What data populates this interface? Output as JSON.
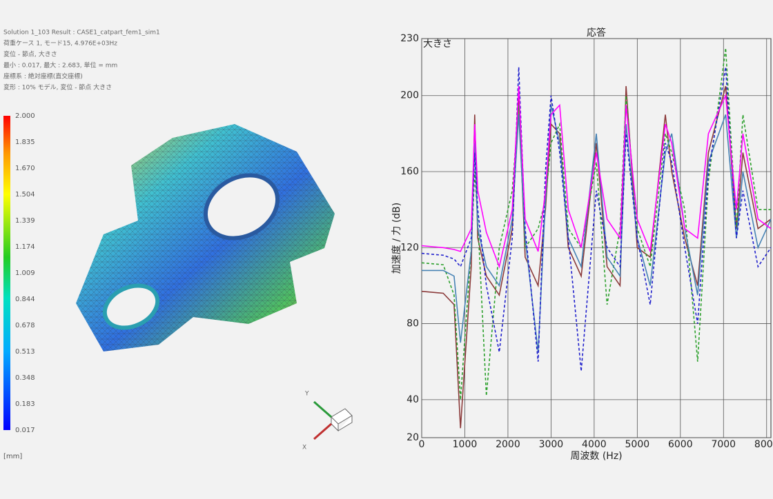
{
  "result_header": {
    "lines": [
      "Solution 1_103 Result : CASE1_catpart_fem1_sim1",
      "荷重ケース 1, モード15, 4.976E+03Hz",
      "変位 - 節点, 大きさ",
      "最小 : 0.017, 最大 : 2.683, 単位 = mm",
      "座標系 : 絶対座標(直交座標)",
      "変形 : 10% モデル, 変位 - 節点 大きさ"
    ]
  },
  "legend": {
    "ticks": [
      "2.000",
      "1.835",
      "1.670",
      "1.504",
      "1.339",
      "1.174",
      "1.009",
      "0.844",
      "0.678",
      "0.513",
      "0.348",
      "0.183",
      "0.017"
    ],
    "unit": "[mm]"
  },
  "triad": {
    "y": "Y",
    "x": "X"
  },
  "chart_data": {
    "type": "line",
    "title": "応答",
    "corner_label": "大きさ",
    "x_label": "周波数 (Hz)",
    "y_label": "加速度 / 力 (dB)",
    "xlim": [
      0,
      8100
    ],
    "ylim": [
      20,
      230
    ],
    "xticks": [
      0,
      1000,
      2000,
      3000,
      4000,
      5000,
      6000,
      7000,
      8000
    ],
    "yticks": [
      20,
      40,
      80,
      120,
      160,
      200,
      230
    ],
    "grid": true,
    "x": [
      0,
      500,
      750,
      900,
      1150,
      1230,
      1300,
      1500,
      1800,
      2100,
      2250,
      2400,
      2700,
      2870,
      3000,
      3200,
      3400,
      3700,
      4050,
      4300,
      4600,
      4740,
      5000,
      5300,
      5650,
      5800,
      6100,
      6400,
      6650,
      7050,
      7300,
      7450,
      7800,
      8100
    ],
    "series": [
      {
        "color": "#8b3a3a",
        "dashed": false,
        "values": [
          97,
          96,
          90,
          25,
          110,
          190,
          125,
          105,
          95,
          130,
          200,
          115,
          100,
          140,
          185,
          180,
          120,
          105,
          175,
          110,
          100,
          205,
          120,
          115,
          190,
          160,
          125,
          100,
          170,
          205,
          130,
          170,
          130,
          135
        ]
      },
      {
        "color": "#2ca02c",
        "dashed": true,
        "values": [
          112,
          111,
          95,
          40,
          120,
          160,
          135,
          42,
          120,
          150,
          195,
          120,
          130,
          145,
          175,
          185,
          130,
          120,
          165,
          90,
          130,
          200,
          130,
          110,
          180,
          170,
          140,
          60,
          155,
          225,
          130,
          190,
          140,
          140
        ]
      },
      {
        "color": "#4682b4",
        "dashed": false,
        "values": [
          108,
          108,
          105,
          70,
          118,
          175,
          130,
          110,
          100,
          135,
          190,
          125,
          65,
          145,
          195,
          175,
          125,
          110,
          180,
          115,
          105,
          185,
          125,
          100,
          170,
          180,
          130,
          95,
          165,
          190,
          125,
          160,
          120,
          135
        ]
      },
      {
        "color": "#1f1fcc",
        "dashed": true,
        "values": [
          117,
          116,
          114,
          110,
          125,
          170,
          140,
          100,
          65,
          125,
          215,
          130,
          60,
          160,
          200,
          170,
          125,
          55,
          150,
          120,
          110,
          180,
          125,
          90,
          175,
          165,
          120,
          80,
          160,
          215,
          125,
          150,
          110,
          120
        ]
      },
      {
        "color": "#ff00ff",
        "dashed": false,
        "values": [
          121,
          120,
          119,
          118,
          130,
          185,
          150,
          128,
          110,
          140,
          205,
          135,
          118,
          150,
          190,
          195,
          140,
          120,
          170,
          135,
          125,
          195,
          135,
          118,
          185,
          175,
          130,
          125,
          180,
          200,
          140,
          180,
          135,
          130
        ]
      }
    ]
  }
}
